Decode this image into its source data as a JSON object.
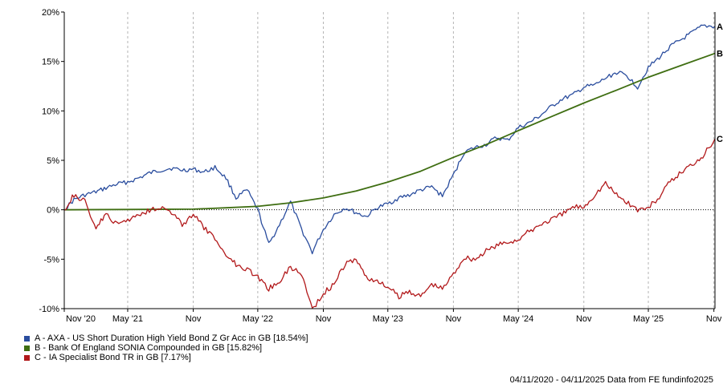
{
  "chart_data": {
    "type": "line",
    "title": "",
    "xlabel": "",
    "ylabel": "",
    "ylim": [
      -10,
      20
    ],
    "y_ticks": [
      -10,
      -5,
      0,
      5,
      10,
      15,
      20
    ],
    "y_tick_labels": [
      "-10%",
      "-5%",
      "0%",
      "5%",
      "10%",
      "15%",
      "20%"
    ],
    "x_range": [
      "2020-11-04",
      "2025-11-04"
    ],
    "x_ticks": [
      {
        "date": "2020-11-04",
        "label": "Nov '20"
      },
      {
        "date": "2021-05-01",
        "label": "May '21"
      },
      {
        "date": "2021-11-01",
        "label": "Nov"
      },
      {
        "date": "2022-05-01",
        "label": "May '22"
      },
      {
        "date": "2022-11-01",
        "label": "Nov"
      },
      {
        "date": "2023-05-01",
        "label": "May '23"
      },
      {
        "date": "2023-11-01",
        "label": "Nov"
      },
      {
        "date": "2024-05-01",
        "label": "May '24"
      },
      {
        "date": "2024-11-01",
        "label": "Nov"
      },
      {
        "date": "2025-05-01",
        "label": "May '25"
      },
      {
        "date": "2025-11-01",
        "label": "Nov"
      }
    ],
    "grid": "vertical-dashed",
    "zero_line": "dotted",
    "legend_placement": "bottom-left",
    "series": [
      {
        "name": "A - AXA - US Short Duration High Yield Bond Z Gr Acc in GB [18.54%]",
        "end_label": "A",
        "color": "#2a4d9e",
        "points": [
          [
            "2020-11-04",
            0.0
          ],
          [
            "2020-12-01",
            1.0
          ],
          [
            "2021-01-01",
            1.5
          ],
          [
            "2021-02-01",
            1.8
          ],
          [
            "2021-03-01",
            2.2
          ],
          [
            "2021-04-01",
            2.6
          ],
          [
            "2021-05-01",
            2.8
          ],
          [
            "2021-06-01",
            3.2
          ],
          [
            "2021-07-01",
            3.7
          ],
          [
            "2021-08-01",
            4.0
          ],
          [
            "2021-09-01",
            4.2
          ],
          [
            "2021-10-01",
            4.0
          ],
          [
            "2021-11-01",
            4.1
          ],
          [
            "2021-12-01",
            3.8
          ],
          [
            "2022-01-01",
            4.3
          ],
          [
            "2022-02-01",
            3.2
          ],
          [
            "2022-03-01",
            1.2
          ],
          [
            "2022-04-01",
            2.0
          ],
          [
            "2022-05-01",
            0.0
          ],
          [
            "2022-06-01",
            -3.5
          ],
          [
            "2022-07-01",
            -1.5
          ],
          [
            "2022-08-01",
            0.8
          ],
          [
            "2022-09-01",
            -2.0
          ],
          [
            "2022-10-01",
            -4.3
          ],
          [
            "2022-11-01",
            -2.0
          ],
          [
            "2022-12-01",
            -0.5
          ],
          [
            "2023-01-01",
            0.2
          ],
          [
            "2023-02-01",
            -0.3
          ],
          [
            "2023-03-01",
            -0.7
          ],
          [
            "2023-04-01",
            0.2
          ],
          [
            "2023-05-01",
            0.6
          ],
          [
            "2023-06-01",
            1.2
          ],
          [
            "2023-07-01",
            1.5
          ],
          [
            "2023-08-01",
            2.0
          ],
          [
            "2023-09-01",
            2.3
          ],
          [
            "2023-10-01",
            1.4
          ],
          [
            "2023-11-01",
            3.5
          ],
          [
            "2023-12-01",
            5.8
          ],
          [
            "2024-01-01",
            6.3
          ],
          [
            "2024-02-01",
            6.6
          ],
          [
            "2024-03-01",
            7.3
          ],
          [
            "2024-04-01",
            7.0
          ],
          [
            "2024-05-01",
            8.3
          ],
          [
            "2024-06-01",
            8.8
          ],
          [
            "2024-07-01",
            9.5
          ],
          [
            "2024-08-01",
            10.4
          ],
          [
            "2024-09-01",
            11.2
          ],
          [
            "2024-10-01",
            11.6
          ],
          [
            "2024-11-01",
            12.4
          ],
          [
            "2024-12-01",
            12.6
          ],
          [
            "2025-01-01",
            13.3
          ],
          [
            "2025-02-01",
            13.9
          ],
          [
            "2025-03-01",
            13.6
          ],
          [
            "2025-04-01",
            12.4
          ],
          [
            "2025-05-01",
            14.4
          ],
          [
            "2025-06-01",
            15.4
          ],
          [
            "2025-07-01",
            16.5
          ],
          [
            "2025-08-01",
            17.2
          ],
          [
            "2025-09-01",
            17.9
          ],
          [
            "2025-10-01",
            18.6
          ],
          [
            "2025-11-04",
            18.54
          ]
        ]
      },
      {
        "name": "B - Bank Of England SONIA Compounded in GB [15.82%]",
        "end_label": "B",
        "color": "#3f6e12",
        "points": [
          [
            "2020-11-04",
            0.0
          ],
          [
            "2021-05-01",
            0.03
          ],
          [
            "2021-11-01",
            0.06
          ],
          [
            "2022-02-01",
            0.2
          ],
          [
            "2022-05-01",
            0.35
          ],
          [
            "2022-08-01",
            0.7
          ],
          [
            "2022-11-01",
            1.2
          ],
          [
            "2023-02-01",
            1.9
          ],
          [
            "2023-05-01",
            2.8
          ],
          [
            "2023-08-01",
            3.9
          ],
          [
            "2023-11-01",
            5.3
          ],
          [
            "2024-02-01",
            6.6
          ],
          [
            "2024-05-01",
            8.0
          ],
          [
            "2024-08-01",
            9.4
          ],
          [
            "2024-11-01",
            10.8
          ],
          [
            "2025-02-01",
            12.1
          ],
          [
            "2025-05-01",
            13.4
          ],
          [
            "2025-08-01",
            14.6
          ],
          [
            "2025-11-04",
            15.82
          ]
        ]
      },
      {
        "name": "C - IA Specialist Bond TR in GB [7.17%]",
        "end_label": "C",
        "color": "#b2191b",
        "points": [
          [
            "2020-11-04",
            0.0
          ],
          [
            "2020-12-01",
            1.5
          ],
          [
            "2021-01-01",
            0.8
          ],
          [
            "2021-02-01",
            -1.8
          ],
          [
            "2021-03-01",
            -0.5
          ],
          [
            "2021-04-01",
            -1.5
          ],
          [
            "2021-05-01",
            -1.0
          ],
          [
            "2021-06-01",
            -0.5
          ],
          [
            "2021-07-01",
            0.0
          ],
          [
            "2021-08-01",
            0.3
          ],
          [
            "2021-09-01",
            -0.3
          ],
          [
            "2021-10-01",
            -1.5
          ],
          [
            "2021-11-01",
            -0.5
          ],
          [
            "2021-12-01",
            -1.8
          ],
          [
            "2022-01-01",
            -3.0
          ],
          [
            "2022-02-01",
            -4.5
          ],
          [
            "2022-03-01",
            -5.5
          ],
          [
            "2022-04-01",
            -6.0
          ],
          [
            "2022-05-01",
            -6.8
          ],
          [
            "2022-06-01",
            -8.0
          ],
          [
            "2022-07-01",
            -7.2
          ],
          [
            "2022-08-01",
            -5.8
          ],
          [
            "2022-09-01",
            -6.5
          ],
          [
            "2022-10-01",
            -10.0
          ],
          [
            "2022-11-01",
            -8.5
          ],
          [
            "2022-12-01",
            -7.5
          ],
          [
            "2023-01-01",
            -5.5
          ],
          [
            "2023-02-01",
            -5.0
          ],
          [
            "2023-03-01",
            -6.8
          ],
          [
            "2023-04-01",
            -7.3
          ],
          [
            "2023-05-01",
            -7.8
          ],
          [
            "2023-06-01",
            -8.8
          ],
          [
            "2023-07-01",
            -8.2
          ],
          [
            "2023-08-01",
            -8.8
          ],
          [
            "2023-09-01",
            -7.5
          ],
          [
            "2023-10-01",
            -8.0
          ],
          [
            "2023-11-01",
            -6.5
          ],
          [
            "2023-12-01",
            -4.8
          ],
          [
            "2024-01-01",
            -5.0
          ],
          [
            "2024-02-01",
            -4.2
          ],
          [
            "2024-03-01",
            -3.6
          ],
          [
            "2024-04-01",
            -3.3
          ],
          [
            "2024-05-01",
            -3.0
          ],
          [
            "2024-06-01",
            -2.2
          ],
          [
            "2024-07-01",
            -1.5
          ],
          [
            "2024-08-01",
            -1.0
          ],
          [
            "2024-09-01",
            -0.5
          ],
          [
            "2024-10-01",
            0.3
          ],
          [
            "2024-11-01",
            0.3
          ],
          [
            "2024-12-01",
            1.5
          ],
          [
            "2025-01-01",
            2.7
          ],
          [
            "2025-02-01",
            1.5
          ],
          [
            "2025-03-01",
            0.8
          ],
          [
            "2025-04-01",
            0.0
          ],
          [
            "2025-05-01",
            0.2
          ],
          [
            "2025-06-01",
            1.3
          ],
          [
            "2025-07-01",
            2.8
          ],
          [
            "2025-08-01",
            3.8
          ],
          [
            "2025-09-01",
            4.6
          ],
          [
            "2025-10-01",
            5.5
          ],
          [
            "2025-11-04",
            7.17
          ]
        ]
      }
    ]
  },
  "footer": {
    "text": "04/11/2020 - 04/11/2025 Data from FE fundinfo2025"
  }
}
